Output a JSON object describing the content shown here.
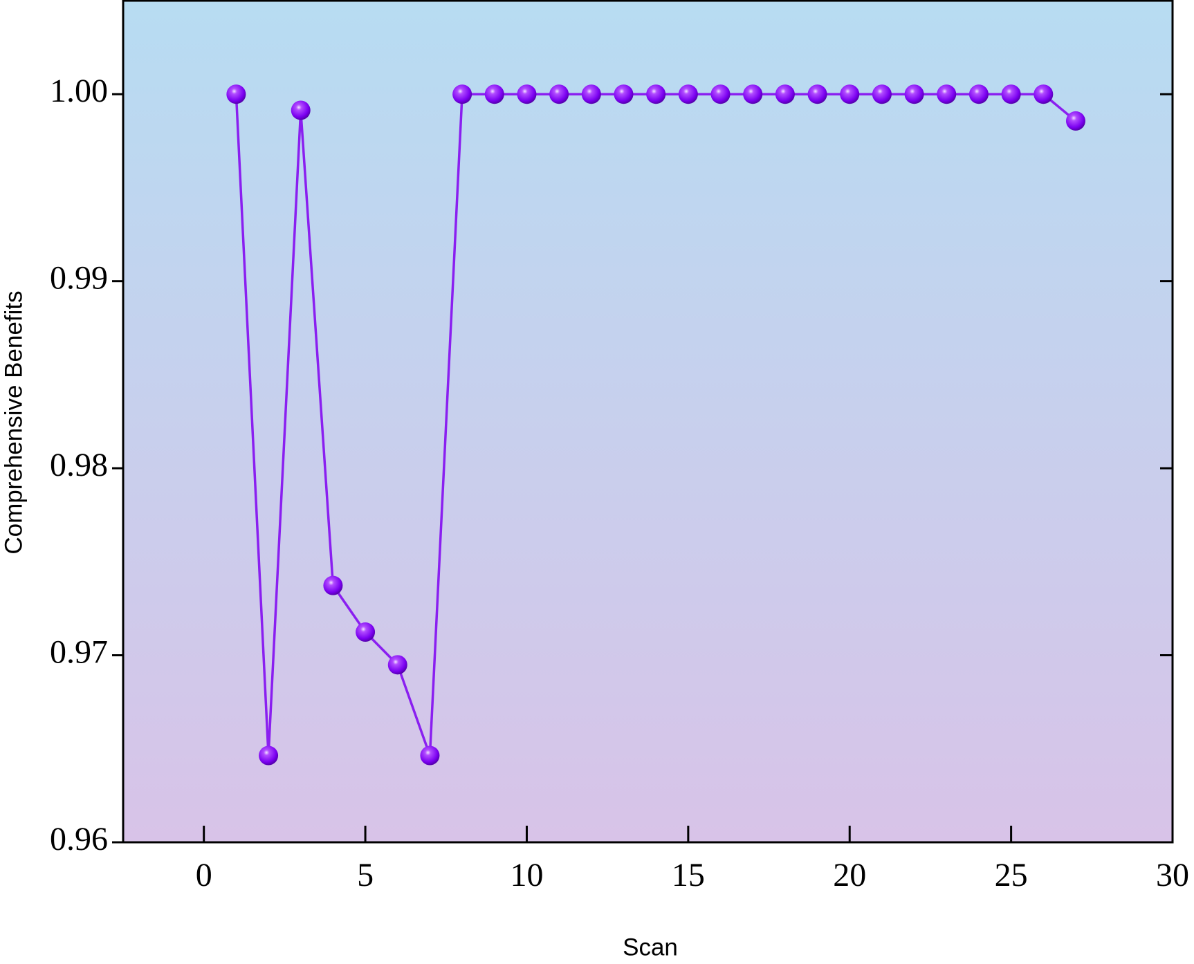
{
  "chart_data": {
    "type": "line",
    "x_label": "Scan",
    "y_label": "Comprehensive Benefits",
    "x": [
      1,
      2,
      3,
      4,
      5,
      6,
      7,
      8,
      9,
      10,
      11,
      12,
      13,
      14,
      15,
      16,
      17,
      18,
      19,
      20,
      21,
      22,
      23,
      24,
      25,
      26,
      27
    ],
    "values": [
      1.0,
      0.96464,
      0.99914,
      0.97373,
      0.97124,
      0.96949,
      0.96464,
      1.0,
      1.0,
      1.0,
      1.0,
      1.0,
      1.0,
      1.0,
      1.0,
      1.0,
      1.0,
      1.0,
      1.0,
      1.0,
      1.0,
      1.0,
      1.0,
      1.0,
      1.0,
      1.0,
      0.99857
    ],
    "color": "#8a1ff0",
    "xlim": [
      -2.5,
      30
    ],
    "xticks": [
      0,
      5,
      10,
      15,
      20,
      25,
      30
    ],
    "ylim": [
      0.96,
      1.005
    ],
    "yticks": [
      0.96,
      0.97,
      0.98,
      0.99,
      {
        "value": 1.0,
        "label": "1.00"
      }
    ]
  }
}
